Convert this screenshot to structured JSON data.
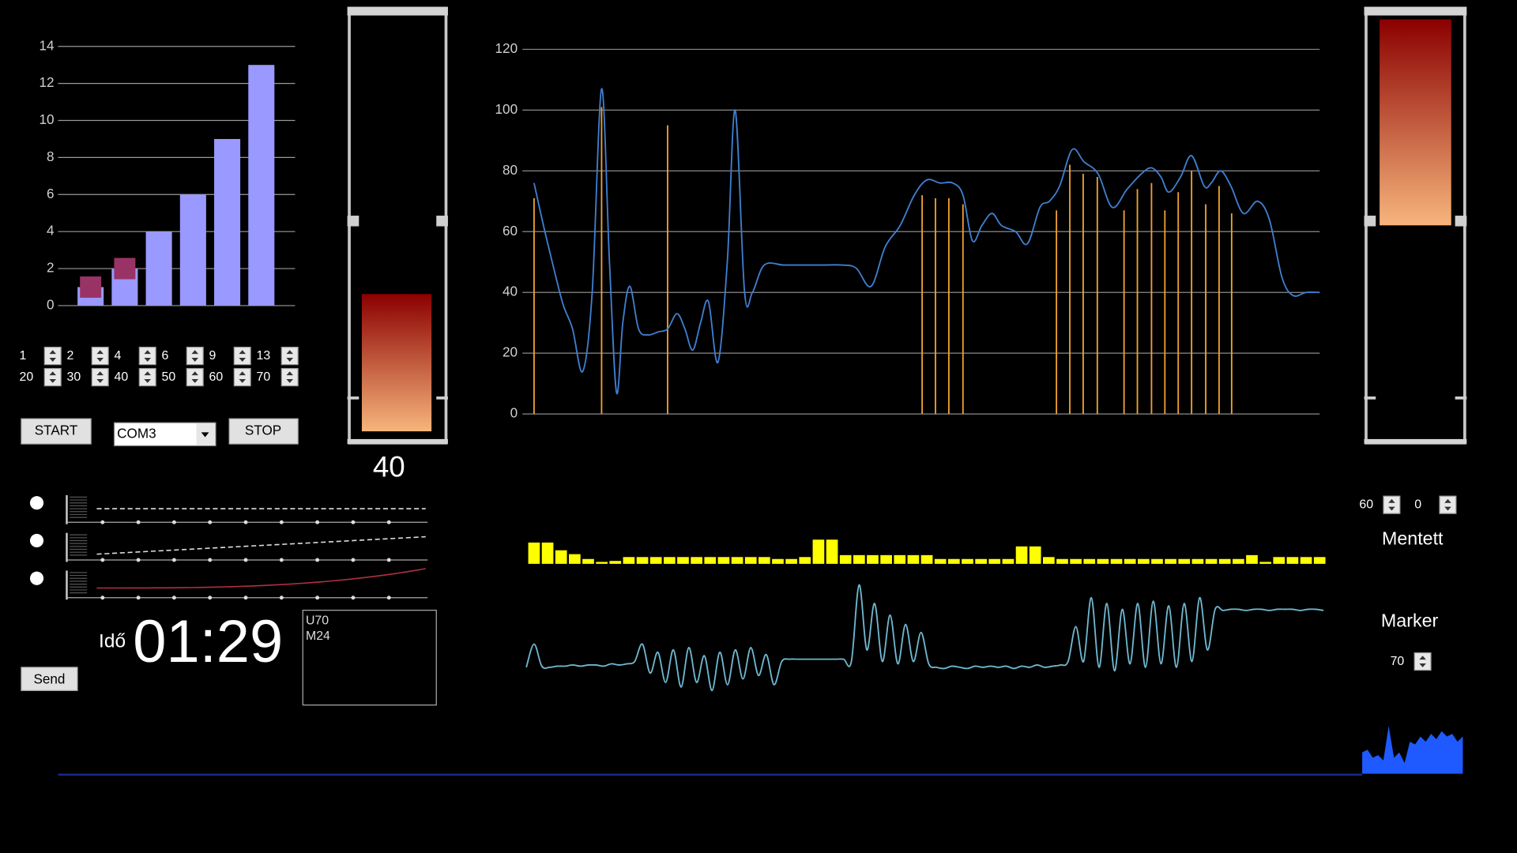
{
  "bar_chart": {
    "type": "bar",
    "values": [
      1,
      2,
      4,
      6,
      9,
      13
    ],
    "markers": [
      1,
      2
    ],
    "color": "#9999ff",
    "marker_color": "#993366",
    "ylim": [
      0,
      14
    ],
    "yticks": [
      0,
      2,
      4,
      6,
      8,
      10,
      12,
      14
    ],
    "grid": true
  },
  "spinners": {
    "row1": [
      1,
      2,
      4,
      6,
      9,
      13
    ],
    "row2": [
      20,
      30,
      40,
      50,
      60,
      70
    ]
  },
  "controls": {
    "start": "START",
    "port": "COM3",
    "stop": "STOP",
    "send": "Send"
  },
  "gauges": [
    {
      "value": 40,
      "ylim": [
        0,
        120
      ]
    },
    {
      "value": 60,
      "ylim": [
        0,
        120
      ],
      "inverted": true
    }
  ],
  "timer": {
    "label": "Idő",
    "time": "01:29"
  },
  "log": [
    "U70",
    "M24"
  ],
  "main_chart": {
    "type": "line",
    "xlim": [
      0,
      100
    ],
    "ylim": [
      0,
      120
    ],
    "yticks": [
      0,
      20,
      40,
      60,
      80,
      100,
      120
    ],
    "grid": true,
    "series": [
      {
        "color": "#3f7fd0",
        "x": [
          0,
          1.2,
          2.5,
          3.7,
          4.9,
          6.2,
          7.4,
          8.6,
          9.6,
          10.5,
          11.3,
          12.2,
          13.3,
          14.5,
          15.8,
          17,
          18.2,
          19.2,
          20.2,
          21.2,
          22.2,
          23.4,
          24.6,
          25.6,
          26.8,
          27.8,
          29.3,
          31.8,
          34.2,
          36.7,
          39.2,
          41,
          42.9,
          44.7,
          46.6,
          48.4,
          50,
          51.7,
          53.3,
          54.6,
          55.8,
          57,
          58.3,
          59.5,
          61.3,
          62.8,
          64.4,
          65.6,
          66.9,
          68.5,
          70,
          71.8,
          73.6,
          75.5,
          77.3,
          78.6,
          79.8,
          80.8,
          82.3,
          83.7,
          85.3,
          86.2,
          87.4,
          88.7,
          90.3,
          92.1,
          93.6,
          95.2,
          96.6,
          98.3,
          100
        ],
        "values": [
          76,
          62,
          48,
          36,
          28,
          14,
          40,
          107,
          50,
          7,
          30,
          42,
          28,
          26,
          27,
          28,
          33,
          28,
          21,
          30,
          37,
          17,
          50,
          100,
          40,
          40,
          49,
          49,
          49,
          49,
          49,
          48,
          42,
          55,
          62,
          72,
          77,
          76,
          76,
          72,
          57,
          62,
          66,
          62,
          60,
          56,
          68,
          70,
          75,
          87,
          83,
          79,
          68,
          74,
          79,
          81,
          78,
          73,
          78,
          85,
          75,
          76,
          80,
          75,
          66,
          70,
          64,
          45,
          39,
          40,
          40
        ]
      }
    ],
    "stems": {
      "color": "#f0a030",
      "x": [
        0,
        8.6,
        17,
        49.4,
        51.1,
        52.8,
        54.6,
        66.5,
        68.2,
        69.9,
        71.7,
        75.1,
        76.8,
        78.6,
        80.3,
        82,
        83.7,
        85.5,
        87.2,
        88.8
      ],
      "values": [
        71,
        101,
        95,
        72,
        71,
        71,
        69,
        67,
        82,
        79,
        78,
        67,
        74,
        76,
        67,
        73,
        80,
        69,
        75,
        66
      ]
    }
  },
  "level_bars": {
    "type": "bar",
    "color": "#ffff00",
    "ylim": [
      0,
      25
    ],
    "values": [
      22,
      22,
      14,
      10,
      5,
      2,
      3,
      7,
      7,
      7,
      7,
      7,
      7,
      7,
      7,
      7,
      7,
      7,
      5,
      5,
      7,
      25,
      25,
      9,
      9,
      9,
      9,
      9,
      9,
      9,
      5,
      5,
      5,
      5,
      5,
      5,
      18,
      18,
      7,
      5,
      5,
      5,
      5,
      5,
      5,
      5,
      5,
      5,
      5,
      5,
      5,
      5,
      5,
      9,
      2,
      7,
      7,
      7,
      7
    ]
  },
  "wave": {
    "type": "line",
    "color": "#6fb8d0",
    "ylim": [
      0,
      100
    ],
    "values": [
      25,
      45,
      26,
      25,
      26,
      26,
      27,
      26,
      27,
      27,
      26,
      28,
      27,
      28,
      30,
      45,
      20,
      38,
      12,
      40,
      8,
      42,
      12,
      35,
      5,
      38,
      10,
      40,
      15,
      42,
      18,
      36,
      10,
      30,
      32,
      32,
      32,
      32,
      32,
      32,
      32,
      32,
      30,
      96,
      40,
      80,
      30,
      70,
      28,
      62,
      30,
      55,
      28,
      25,
      24,
      26,
      25,
      24,
      26,
      25,
      26,
      25,
      26,
      24,
      26,
      25,
      27,
      25,
      26,
      27,
      30,
      60,
      30,
      85,
      25,
      80,
      22,
      75,
      28,
      80,
      25,
      82,
      28,
      78,
      25,
      80,
      30,
      85,
      40,
      75,
      74,
      75,
      75,
      74,
      75,
      75,
      74,
      75,
      75,
      75,
      74,
      75,
      75,
      74
    ]
  },
  "spectrum": {
    "type": "area",
    "color": "#1e5aff",
    "ylim": [
      0,
      100
    ],
    "values": [
      40,
      45,
      30,
      35,
      25,
      90,
      30,
      40,
      20,
      60,
      55,
      70,
      60,
      75,
      65,
      80,
      70,
      75,
      60,
      70
    ]
  },
  "right_panel": {
    "spinners": [
      60,
      0
    ],
    "saved_label": "Mentett",
    "marker_label": "Marker",
    "marker_value": 70
  }
}
